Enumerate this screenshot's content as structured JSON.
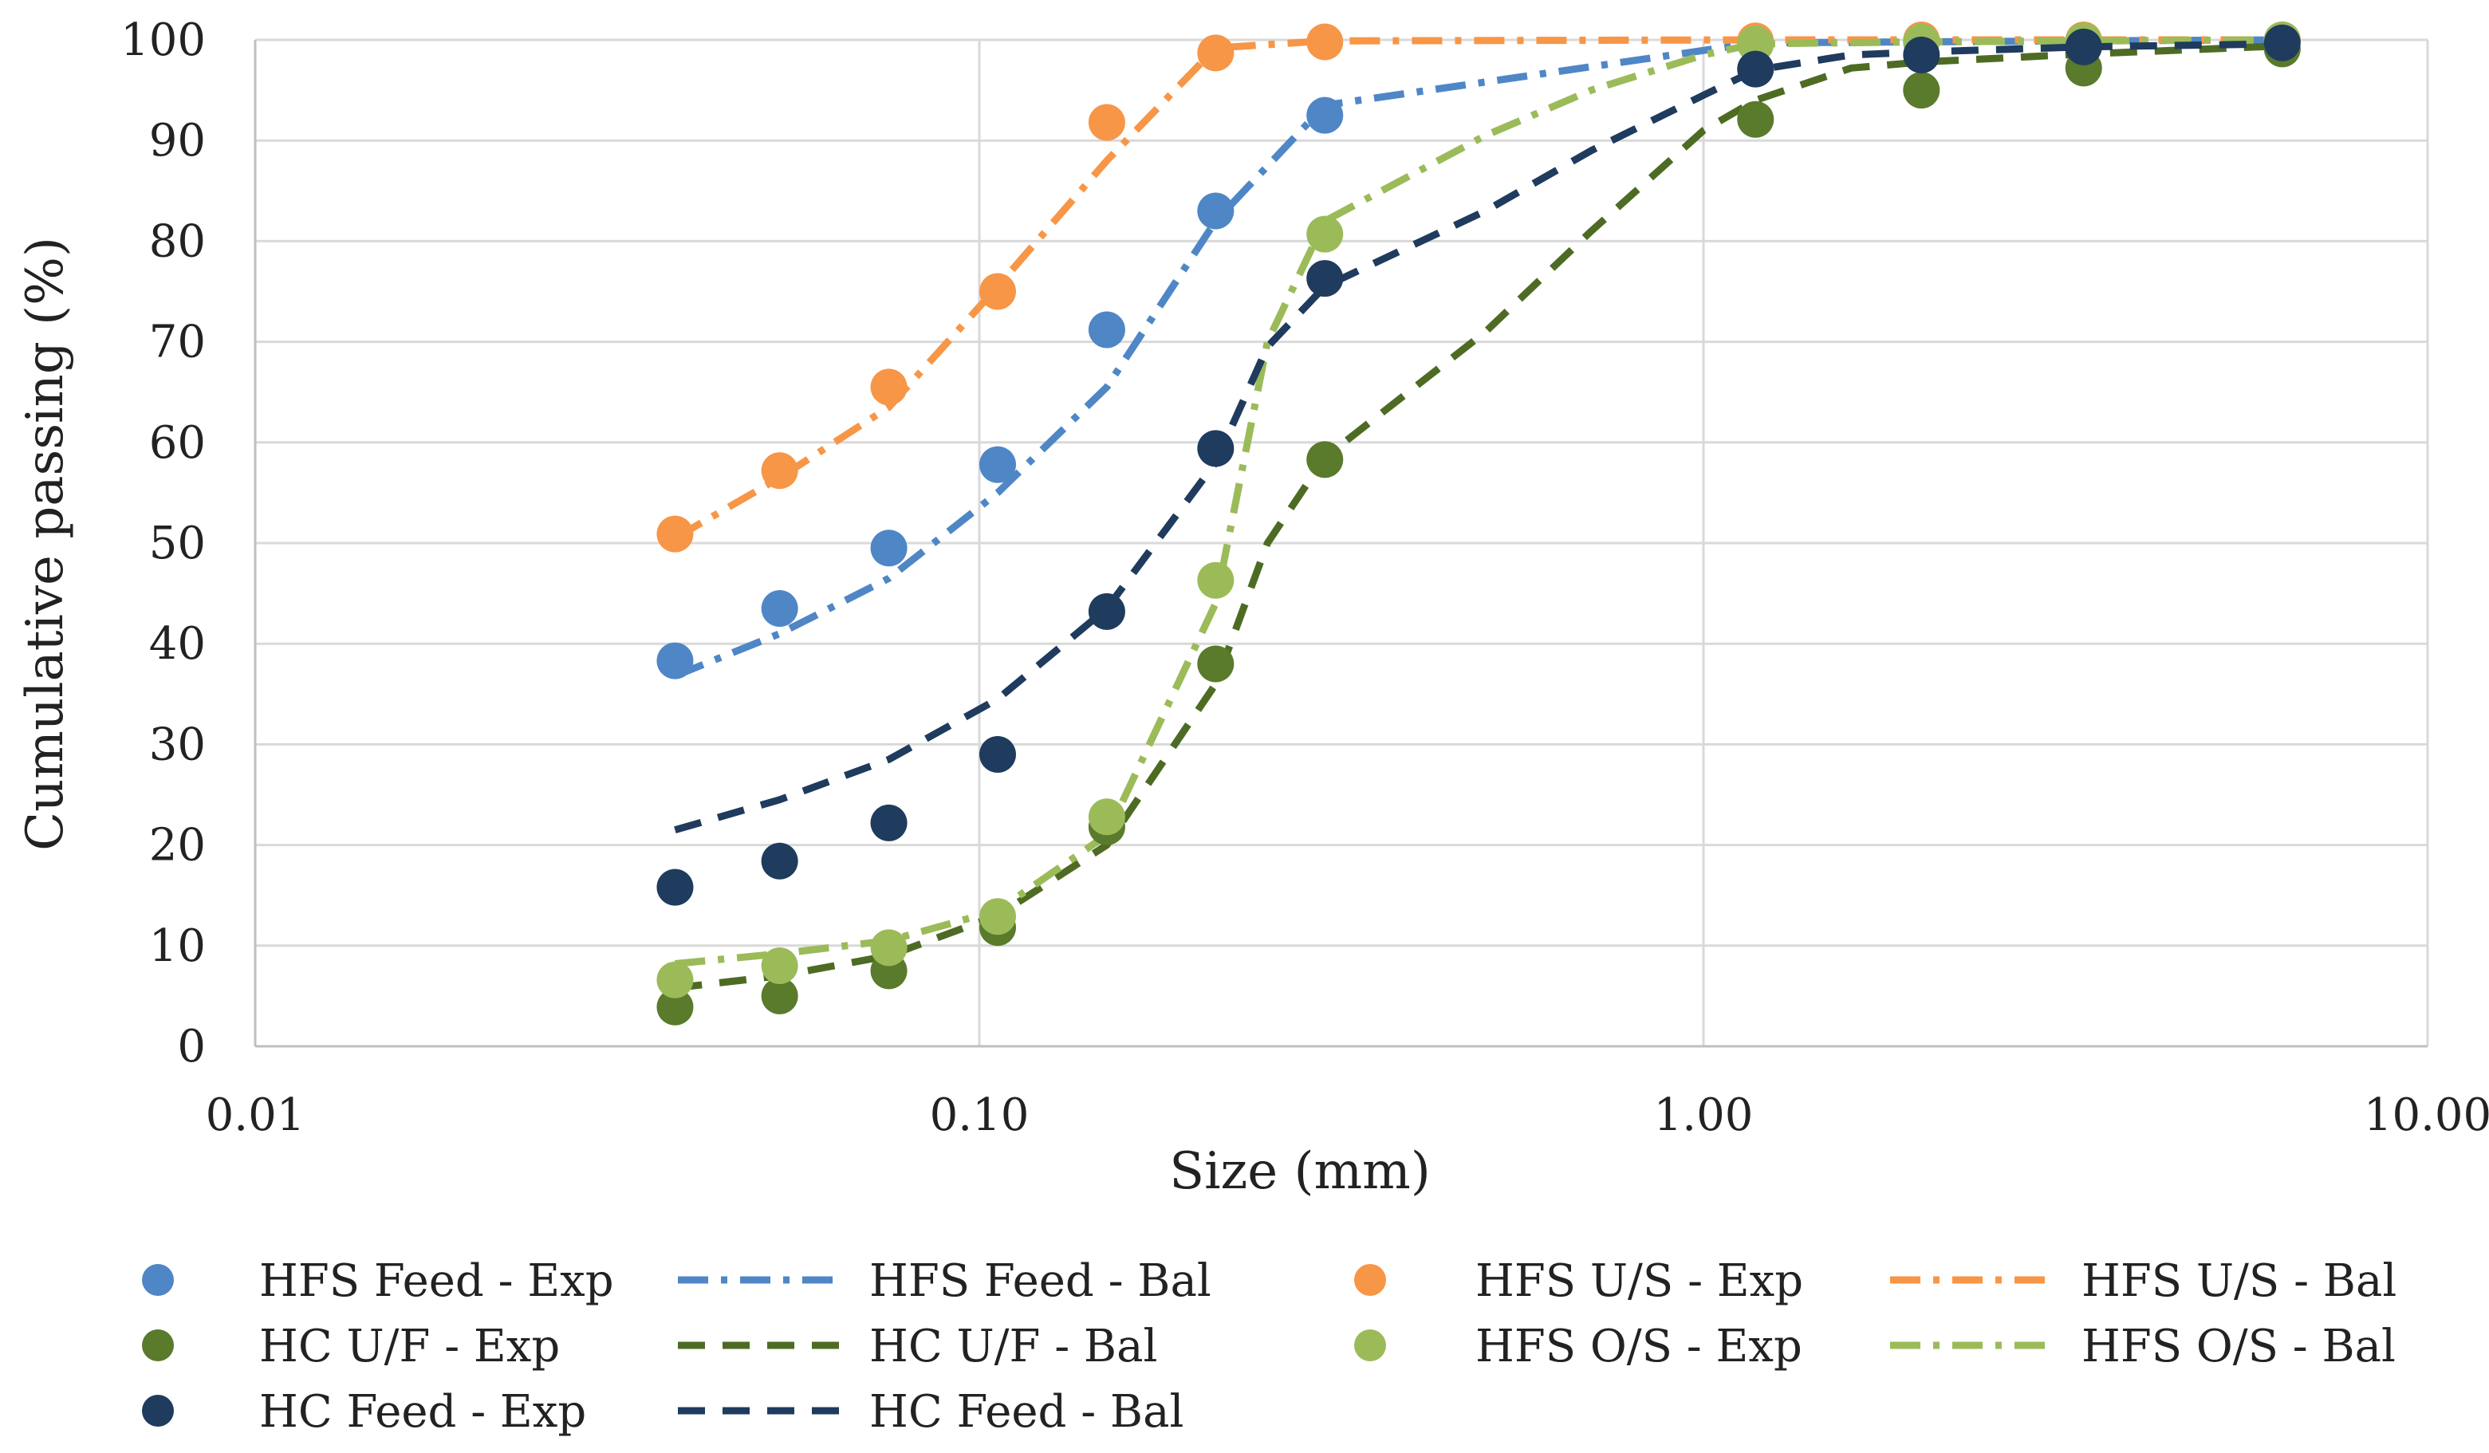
{
  "chart_data": {
    "type": "scatter",
    "xscale": "log",
    "xlabel": "Size (mm)",
    "ylabel": "Cumulative passing (%)",
    "xlim": [
      0.01,
      10
    ],
    "ylim": [
      0,
      100
    ],
    "grid": true,
    "legend_position": "bottom",
    "x_ticks": [
      {
        "value": 0.01,
        "label": "0.01"
      },
      {
        "value": 0.1,
        "label": "0.10"
      },
      {
        "value": 1,
        "label": "1.00"
      },
      {
        "value": 10,
        "label": "10.00"
      }
    ],
    "y_ticks": [
      {
        "value": 0,
        "label": "0"
      },
      {
        "value": 10,
        "label": "10"
      },
      {
        "value": 20,
        "label": "20"
      },
      {
        "value": 30,
        "label": "30"
      },
      {
        "value": 40,
        "label": "40"
      },
      {
        "value": 50,
        "label": "50"
      },
      {
        "value": 60,
        "label": "60"
      },
      {
        "value": 70,
        "label": "70"
      },
      {
        "value": 80,
        "label": "80"
      },
      {
        "value": 90,
        "label": "90"
      },
      {
        "value": 100,
        "label": "100"
      }
    ],
    "series": [
      {
        "name": "HFS Feed - Exp",
        "kind": "points",
        "color": "#4f86c6",
        "x": [
          0.038,
          0.053,
          0.075,
          0.106,
          0.15,
          0.212,
          0.3,
          1.18,
          2.0,
          3.35,
          6.3
        ],
        "y": [
          38.3,
          43.5,
          49.5,
          57.8,
          71.2,
          83.0,
          92.5,
          99.6,
          99.8,
          99.9,
          100
        ]
      },
      {
        "name": "HFS Feed - Bal",
        "kind": "line",
        "dash": "dashdot",
        "color": "#4f86c6",
        "x": [
          0.038,
          0.053,
          0.075,
          0.106,
          0.15,
          0.212,
          0.3,
          1.18,
          2.0,
          3.35,
          6.3
        ],
        "y": [
          36.8,
          41.0,
          46.5,
          55.0,
          65.5,
          82.0,
          93.5,
          99.7,
          99.8,
          99.9,
          100
        ]
      },
      {
        "name": "HFS U/S - Exp",
        "kind": "points",
        "color": "#f79646",
        "x": [
          0.038,
          0.053,
          0.075,
          0.106,
          0.15,
          0.212,
          0.3,
          1.18,
          2.0,
          3.35,
          6.3
        ],
        "y": [
          50.9,
          57.2,
          65.5,
          75.0,
          91.8,
          98.7,
          99.8,
          99.9,
          100,
          100,
          100
        ]
      },
      {
        "name": "HFS U/S - Bal",
        "kind": "line",
        "dash": "dashdot",
        "color": "#f79646",
        "x": [
          0.038,
          0.053,
          0.075,
          0.106,
          0.15,
          0.212,
          0.3,
          1.18,
          2.0,
          3.35,
          6.3
        ],
        "y": [
          50.5,
          56.5,
          63.5,
          75.5,
          88.0,
          99.2,
          99.9,
          100,
          100,
          100,
          100
        ]
      },
      {
        "name": "HC U/F - Exp",
        "kind": "points",
        "color": "#5a7a2c",
        "x": [
          0.038,
          0.053,
          0.075,
          0.106,
          0.15,
          0.212,
          0.3,
          1.18,
          2.0,
          3.35,
          6.3
        ],
        "y": [
          3.9,
          5.0,
          7.5,
          11.8,
          21.8,
          38.0,
          58.3,
          92.1,
          95.0,
          97.2,
          99.1
        ]
      },
      {
        "name": "HC U/F - Bal",
        "kind": "line",
        "dash": "dash",
        "color": "#4e6b24",
        "x": [
          0.038,
          0.053,
          0.075,
          0.106,
          0.15,
          0.212,
          0.25,
          0.3,
          0.5,
          0.7,
          1.0,
          1.18,
          1.6,
          2.0,
          3.35,
          6.3
        ],
        "y": [
          5.8,
          7.0,
          9.0,
          13.0,
          20.0,
          36.0,
          50.0,
          58.5,
          71.0,
          81.0,
          91.0,
          94.0,
          97.2,
          97.8,
          98.6,
          99.4
        ]
      },
      {
        "name": "HFS O/S - Exp",
        "kind": "points",
        "color": "#9bbb59",
        "x": [
          0.038,
          0.053,
          0.075,
          0.106,
          0.15,
          0.212,
          0.3,
          1.18,
          2.0,
          3.35,
          6.3
        ],
        "y": [
          6.6,
          8.0,
          9.8,
          12.9,
          22.8,
          46.3,
          80.7,
          99.6,
          99.8,
          99.9,
          100
        ]
      },
      {
        "name": "HFS O/S - Bal",
        "kind": "line",
        "dash": "dashdot",
        "color": "#9bbb59",
        "x": [
          0.038,
          0.053,
          0.075,
          0.106,
          0.15,
          0.212,
          0.25,
          0.3,
          0.5,
          0.7,
          1.0,
          1.18,
          2.0,
          3.35,
          6.3
        ],
        "y": [
          8.2,
          9.2,
          10.5,
          13.5,
          21.0,
          44.0,
          70.0,
          82.0,
          90.5,
          95.0,
          98.5,
          99.6,
          99.8,
          99.9,
          100
        ]
      },
      {
        "name": "HC Feed - Exp",
        "kind": "points",
        "color": "#1f3b5e",
        "x": [
          0.038,
          0.053,
          0.075,
          0.106,
          0.15,
          0.212,
          0.3,
          1.18,
          2.0,
          3.35,
          6.3
        ],
        "y": [
          15.8,
          18.4,
          22.2,
          29.0,
          43.2,
          59.4,
          76.3,
          97.1,
          98.5,
          99.3,
          99.7
        ]
      },
      {
        "name": "HC Feed - Bal",
        "kind": "line",
        "dash": "dash",
        "color": "#1f3b5e",
        "x": [
          0.038,
          0.053,
          0.075,
          0.106,
          0.15,
          0.212,
          0.25,
          0.3,
          0.5,
          0.7,
          1.0,
          1.18,
          1.6,
          2.0,
          3.35,
          6.3
        ],
        "y": [
          21.5,
          24.5,
          28.5,
          34.5,
          43.5,
          58.0,
          69.5,
          75.5,
          83.0,
          89.0,
          94.5,
          97.0,
          98.5,
          98.8,
          99.3,
          99.6
        ]
      }
    ]
  }
}
